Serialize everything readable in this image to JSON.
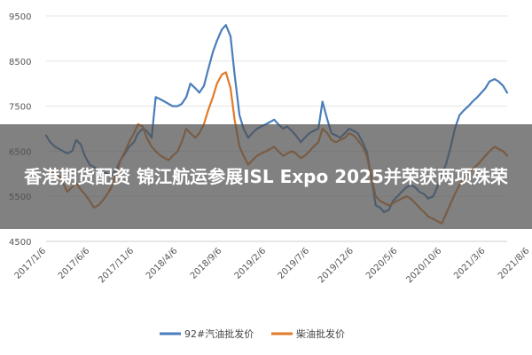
{
  "colors": {
    "gasoline": "#4a7ebb",
    "diesel": "#e07b2a",
    "grid": "#e5e5e5",
    "axis": "#cfcfcf",
    "overlay": "rgba(80,80,80,0.72)"
  },
  "overlay": {
    "title": "香港期货配资 锦江航运参展ISL Expo 2025并荣获两项殊荣"
  },
  "chart_data": {
    "type": "line",
    "ylim": [
      4500,
      9500
    ],
    "y_ticks": [
      4500,
      5500,
      6500,
      7500,
      8500,
      9500
    ],
    "x_ticks": [
      "2017/1/6",
      "2017/6/6",
      "2017/11/6",
      "2018/4/6",
      "2018/9/6",
      "2019/2/6",
      "2019/7/6",
      "2019/12/6",
      "2020/5/6",
      "2020/10/6",
      "2021/3/6",
      "2021/8/6"
    ],
    "grid": "horizontal",
    "legend_position": "bottom",
    "series": [
      {
        "name": "92#汽油批发价",
        "color": "#4a7ebb",
        "points": [
          [
            "2017/1/6",
            6850
          ],
          [
            "2017/1/20",
            6700
          ],
          [
            "2017/2/6",
            6600
          ],
          [
            "2017/2/20",
            6550
          ],
          [
            "2017/3/6",
            6500
          ],
          [
            "2017/3/20",
            6450
          ],
          [
            "2017/4/6",
            6500
          ],
          [
            "2017/4/20",
            6750
          ],
          [
            "2017/5/6",
            6650
          ],
          [
            "2017/5/20",
            6400
          ],
          [
            "2017/6/6",
            6200
          ],
          [
            "2017/6/20",
            6150
          ],
          [
            "2017/7/6",
            6100
          ],
          [
            "2017/7/20",
            6050
          ],
          [
            "2017/8/6",
            6000
          ],
          [
            "2017/8/20",
            5950
          ],
          [
            "2017/9/6",
            6100
          ],
          [
            "2017/9/20",
            6300
          ],
          [
            "2017/10/6",
            6450
          ],
          [
            "2017/10/20",
            6600
          ],
          [
            "2017/11/6",
            6700
          ],
          [
            "2017/11/20",
            6900
          ],
          [
            "2017/12/6",
            7000
          ],
          [
            "2017/12/20",
            6950
          ],
          [
            "2018/1/6",
            6800
          ],
          [
            "2018/1/20",
            7700
          ],
          [
            "2018/2/6",
            7650
          ],
          [
            "2018/2/20",
            7600
          ],
          [
            "2018/3/6",
            7550
          ],
          [
            "2018/3/20",
            7500
          ],
          [
            "2018/4/6",
            7500
          ],
          [
            "2018/4/20",
            7550
          ],
          [
            "2018/5/6",
            7700
          ],
          [
            "2018/5/20",
            8000
          ],
          [
            "2018/6/6",
            7900
          ],
          [
            "2018/6/20",
            7800
          ],
          [
            "2018/7/6",
            7950
          ],
          [
            "2018/7/20",
            8300
          ],
          [
            "2018/8/6",
            8700
          ],
          [
            "2018/8/20",
            8950
          ],
          [
            "2018/9/6",
            9200
          ],
          [
            "2018/9/20",
            9300
          ],
          [
            "2018/10/6",
            9050
          ],
          [
            "2018/10/20",
            8200
          ],
          [
            "2018/11/6",
            7300
          ],
          [
            "2018/11/20",
            7000
          ],
          [
            "2018/12/6",
            6800
          ],
          [
            "2018/12/20",
            6900
          ],
          [
            "2019/1/6",
            7000
          ],
          [
            "2019/1/20",
            7050
          ],
          [
            "2019/2/6",
            7100
          ],
          [
            "2019/2/20",
            7150
          ],
          [
            "2019/3/6",
            7200
          ],
          [
            "2019/3/20",
            7100
          ],
          [
            "2019/4/6",
            7000
          ],
          [
            "2019/4/20",
            7050
          ],
          [
            "2019/5/6",
            6950
          ],
          [
            "2019/5/20",
            6850
          ],
          [
            "2019/6/6",
            6700
          ],
          [
            "2019/6/20",
            6800
          ],
          [
            "2019/7/6",
            6900
          ],
          [
            "2019/7/20",
            6950
          ],
          [
            "2019/8/6",
            7000
          ],
          [
            "2019/8/20",
            7600
          ],
          [
            "2019/9/6",
            7200
          ],
          [
            "2019/9/20",
            6900
          ],
          [
            "2019/10/6",
            6850
          ],
          [
            "2019/10/20",
            6800
          ],
          [
            "2019/11/6",
            6900
          ],
          [
            "2019/11/20",
            7000
          ],
          [
            "2019/12/6",
            6950
          ],
          [
            "2019/12/20",
            6900
          ],
          [
            "2020/1/6",
            6700
          ],
          [
            "2020/1/20",
            6500
          ],
          [
            "2020/2/6",
            5900
          ],
          [
            "2020/2/20",
            5300
          ],
          [
            "2020/3/6",
            5250
          ],
          [
            "2020/3/20",
            5150
          ],
          [
            "2020/4/6",
            5200
          ],
          [
            "2020/4/20",
            5400
          ],
          [
            "2020/5/6",
            5500
          ],
          [
            "2020/5/20",
            5600
          ],
          [
            "2020/6/6",
            5700
          ],
          [
            "2020/6/20",
            5750
          ],
          [
            "2020/7/6",
            5700
          ],
          [
            "2020/7/20",
            5600
          ],
          [
            "2020/8/6",
            5550
          ],
          [
            "2020/8/20",
            5450
          ],
          [
            "2020/9/6",
            5500
          ],
          [
            "2020/9/20",
            5700
          ],
          [
            "2020/10/6",
            6000
          ],
          [
            "2020/10/20",
            6200
          ],
          [
            "2020/11/6",
            6600
          ],
          [
            "2020/11/20",
            7000
          ],
          [
            "2020/12/6",
            7300
          ],
          [
            "2020/12/20",
            7400
          ],
          [
            "2021/1/6",
            7500
          ],
          [
            "2021/1/20",
            7600
          ],
          [
            "2021/2/6",
            7700
          ],
          [
            "2021/2/20",
            7800
          ],
          [
            "2021/3/6",
            7900
          ],
          [
            "2021/3/20",
            8050
          ],
          [
            "2021/4/6",
            8100
          ],
          [
            "2021/4/20",
            8050
          ],
          [
            "2021/5/6",
            7950
          ],
          [
            "2021/5/20",
            7800
          ]
        ]
      },
      {
        "name": "柴油批发价",
        "color": "#e07b2a",
        "points": [
          [
            "2017/1/6",
            6100
          ],
          [
            "2017/1/20",
            6050
          ],
          [
            "2017/2/6",
            6000
          ],
          [
            "2017/2/20",
            5950
          ],
          [
            "2017/3/6",
            5800
          ],
          [
            "2017/3/20",
            5600
          ],
          [
            "2017/4/6",
            5700
          ],
          [
            "2017/4/20",
            5800
          ],
          [
            "2017/5/6",
            5650
          ],
          [
            "2017/5/20",
            5550
          ],
          [
            "2017/6/6",
            5400
          ],
          [
            "2017/6/20",
            5250
          ],
          [
            "2017/7/6",
            5300
          ],
          [
            "2017/7/20",
            5400
          ],
          [
            "2017/8/6",
            5550
          ],
          [
            "2017/8/20",
            5700
          ],
          [
            "2017/9/6",
            6000
          ],
          [
            "2017/9/20",
            6300
          ],
          [
            "2017/10/6",
            6500
          ],
          [
            "2017/10/20",
            6700
          ],
          [
            "2017/11/6",
            6900
          ],
          [
            "2017/11/20",
            7100
          ],
          [
            "2017/12/6",
            7050
          ],
          [
            "2017/12/20",
            6800
          ],
          [
            "2018/1/6",
            6600
          ],
          [
            "2018/1/20",
            6500
          ],
          [
            "2018/2/6",
            6400
          ],
          [
            "2018/2/20",
            6350
          ],
          [
            "2018/3/6",
            6300
          ],
          [
            "2018/3/20",
            6400
          ],
          [
            "2018/4/6",
            6500
          ],
          [
            "2018/4/20",
            6700
          ],
          [
            "2018/5/6",
            7000
          ],
          [
            "2018/5/20",
            6900
          ],
          [
            "2018/6/6",
            6800
          ],
          [
            "2018/6/20",
            6900
          ],
          [
            "2018/7/6",
            7100
          ],
          [
            "2018/7/20",
            7400
          ],
          [
            "2018/8/6",
            7700
          ],
          [
            "2018/8/20",
            8000
          ],
          [
            "2018/9/6",
            8200
          ],
          [
            "2018/9/20",
            8250
          ],
          [
            "2018/10/6",
            7900
          ],
          [
            "2018/10/20",
            7200
          ],
          [
            "2018/11/6",
            6600
          ],
          [
            "2018/11/20",
            6400
          ],
          [
            "2018/12/6",
            6200
          ],
          [
            "2018/12/20",
            6300
          ],
          [
            "2019/1/6",
            6400
          ],
          [
            "2019/1/20",
            6450
          ],
          [
            "2019/2/6",
            6500
          ],
          [
            "2019/2/20",
            6550
          ],
          [
            "2019/3/6",
            6600
          ],
          [
            "2019/3/20",
            6500
          ],
          [
            "2019/4/6",
            6400
          ],
          [
            "2019/4/20",
            6450
          ],
          [
            "2019/5/6",
            6500
          ],
          [
            "2019/5/20",
            6450
          ],
          [
            "2019/6/6",
            6350
          ],
          [
            "2019/6/20",
            6400
          ],
          [
            "2019/7/6",
            6500
          ],
          [
            "2019/7/20",
            6600
          ],
          [
            "2019/8/6",
            6700
          ],
          [
            "2019/8/20",
            7000
          ],
          [
            "2019/9/6",
            6900
          ],
          [
            "2019/9/20",
            6750
          ],
          [
            "2019/10/6",
            6700
          ],
          [
            "2019/10/20",
            6750
          ],
          [
            "2019/11/6",
            6800
          ],
          [
            "2019/11/20",
            6900
          ],
          [
            "2019/12/6",
            6850
          ],
          [
            "2019/12/20",
            6750
          ],
          [
            "2020/1/6",
            6600
          ],
          [
            "2020/1/20",
            6400
          ],
          [
            "2020/2/6",
            5900
          ],
          [
            "2020/2/20",
            5500
          ],
          [
            "2020/3/6",
            5400
          ],
          [
            "2020/3/20",
            5350
          ],
          [
            "2020/4/6",
            5300
          ],
          [
            "2020/4/20",
            5350
          ],
          [
            "2020/5/6",
            5400
          ],
          [
            "2020/5/20",
            5450
          ],
          [
            "2020/6/6",
            5500
          ],
          [
            "2020/6/20",
            5450
          ],
          [
            "2020/7/6",
            5350
          ],
          [
            "2020/7/20",
            5250
          ],
          [
            "2020/8/6",
            5150
          ],
          [
            "2020/8/20",
            5050
          ],
          [
            "2020/9/6",
            5000
          ],
          [
            "2020/9/20",
            4950
          ],
          [
            "2020/10/6",
            4900
          ],
          [
            "2020/10/20",
            5100
          ],
          [
            "2020/11/6",
            5350
          ],
          [
            "2020/11/20",
            5550
          ],
          [
            "2020/12/6",
            5750
          ],
          [
            "2020/12/20",
            5900
          ],
          [
            "2021/1/6",
            6000
          ],
          [
            "2021/1/20",
            6100
          ],
          [
            "2021/2/6",
            6200
          ],
          [
            "2021/2/20",
            6300
          ],
          [
            "2021/3/6",
            6400
          ],
          [
            "2021/3/20",
            6500
          ],
          [
            "2021/4/6",
            6600
          ],
          [
            "2021/4/20",
            6550
          ],
          [
            "2021/5/6",
            6500
          ],
          [
            "2021/5/20",
            6400
          ]
        ]
      }
    ]
  }
}
